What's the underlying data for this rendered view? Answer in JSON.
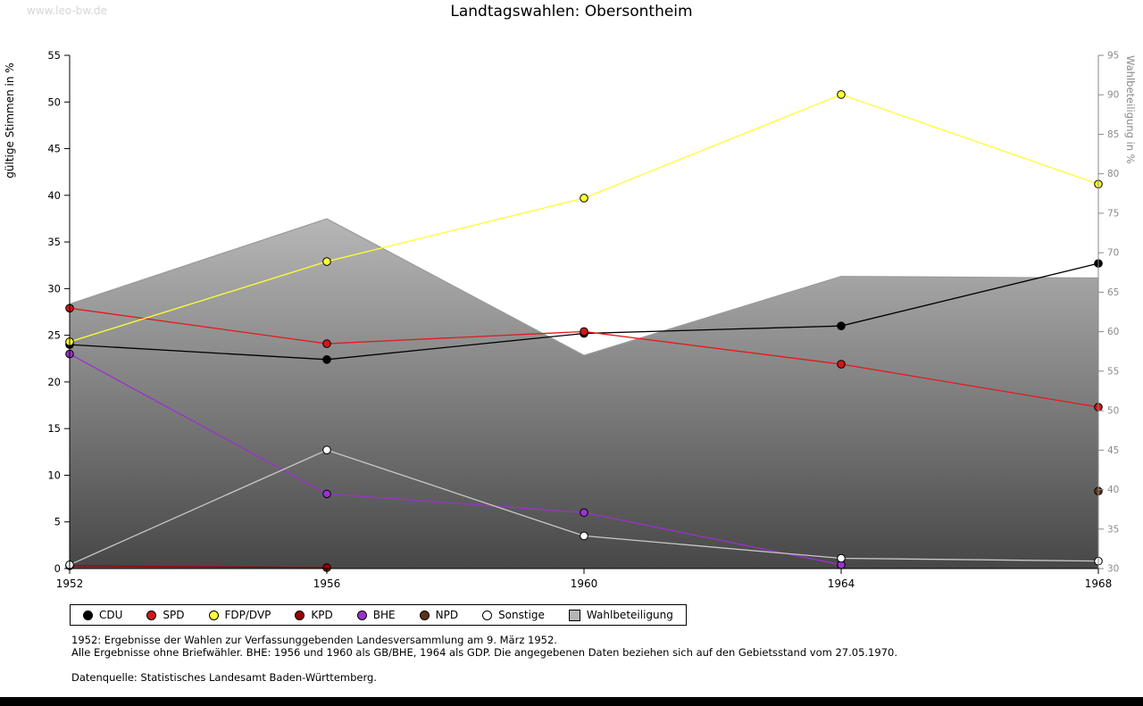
{
  "watermark": "www.leo-bw.de",
  "title": "Landtagswahlen: Obersontheim",
  "footnotes": {
    "line1": "1952: Ergebnisse der Wahlen zur Verfassunggebenden Landesversammlung am 9. März 1952.",
    "line2": "Alle Ergebnisse ohne Briefwähler. BHE: 1956 und 1960 als GB/BHE, 1964 als GDP. Die angegebenen Daten beziehen sich auf den Gebietsstand vom 27.05.1970.",
    "source": "Datenquelle: Statistisches Landesamt Baden-Württemberg."
  },
  "chart_data": {
    "type": "line",
    "title": "Landtagswahlen: Obersontheim",
    "x": [
      1952,
      1956,
      1960,
      1964,
      1968
    ],
    "ylabel_left": "gültige Stimmen in %",
    "ylabel_right": "Wahlbeteiligung in %",
    "ylim_left": [
      0,
      55
    ],
    "ylim_right": [
      30,
      95
    ],
    "ytick_step": 5,
    "grid": false,
    "legend_position": "bottom",
    "area_gradient": [
      "#474747",
      "#ebebeb"
    ],
    "axis_color_left": "#000000",
    "axis_color_right": "#8a8a8a",
    "series": [
      {
        "name": "CDU",
        "color": "#000000",
        "marker_fill": "#000000",
        "axis": "left",
        "values": [
          24.0,
          22.4,
          25.2,
          26.0,
          32.7
        ]
      },
      {
        "name": "SPD",
        "color": "#e31a1c",
        "marker_fill": "#d01818",
        "axis": "left",
        "values": [
          27.9,
          24.1,
          25.4,
          21.9,
          17.3
        ]
      },
      {
        "name": "FDP/DVP",
        "color": "#ffff33",
        "marker_fill": "#ffff33",
        "axis": "left",
        "values": [
          24.3,
          32.9,
          39.7,
          50.8,
          41.2
        ]
      },
      {
        "name": "KPD",
        "color": "#990000",
        "marker_fill": "#990000",
        "axis": "left",
        "values": [
          0.3,
          0.1,
          null,
          null,
          null
        ]
      },
      {
        "name": "BHE",
        "color": "#9933cc",
        "marker_fill": "#9933cc",
        "axis": "left",
        "values": [
          23.0,
          8.0,
          6.0,
          0.4,
          null
        ]
      },
      {
        "name": "NPD",
        "color": "#5c3317",
        "marker_fill": "#5c3317",
        "axis": "left",
        "values": [
          null,
          null,
          null,
          null,
          8.3
        ]
      },
      {
        "name": "Sonstige",
        "color": "#c8c8c8",
        "marker_fill": "#ffffff",
        "axis": "left",
        "values": [
          0.4,
          12.7,
          3.5,
          1.1,
          0.8
        ]
      },
      {
        "name": "Wahlbeteiligung",
        "color": "#999999",
        "marker_fill": "#b4b4b4",
        "axis": "right",
        "type": "area",
        "values": [
          63.5,
          74.3,
          57.0,
          67.0,
          66.8
        ]
      }
    ]
  }
}
